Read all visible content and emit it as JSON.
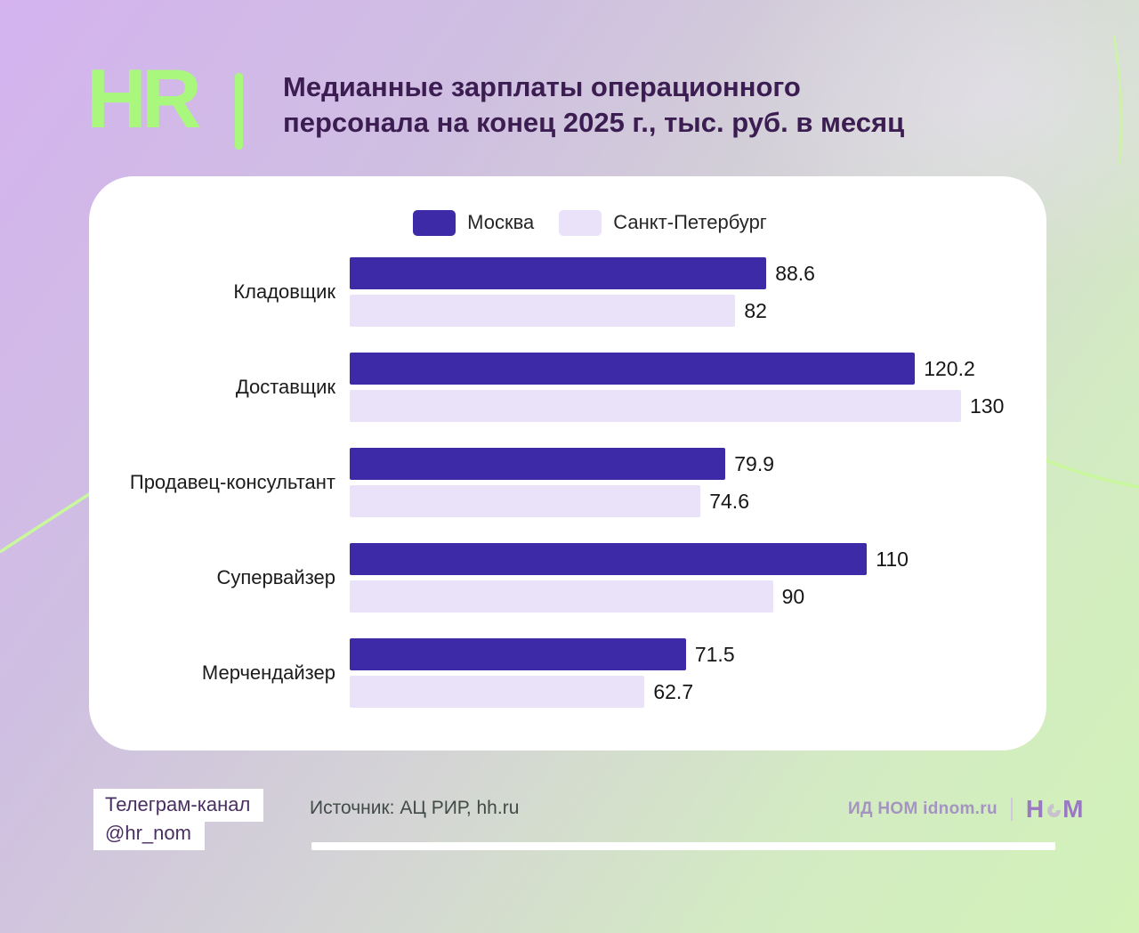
{
  "header": {
    "logo_text": "HR",
    "title_line1": "Медианные зарплаты операционного",
    "title_line2": "персонала на конец 2025 г., тыс. руб. в месяц"
  },
  "chart_data": {
    "type": "bar",
    "orientation": "horizontal",
    "title": "Медианные зарплаты операционного персонала на конец 2025 г., тыс. руб. в месяц",
    "categories": [
      "Кладовщик",
      "Доставщик",
      "Продавец-консультант",
      "Супервайзер",
      "Мерчендайзер"
    ],
    "series": [
      {
        "name": "Москва",
        "color": "#3d2aa7",
        "values": [
          88.6,
          120.2,
          79.9,
          110,
          71.5
        ]
      },
      {
        "name": "Санкт-Петербург",
        "color": "#e9e2f9",
        "values": [
          82,
          130,
          74.6,
          90,
          62.7
        ]
      }
    ],
    "xlim": [
      0,
      130
    ],
    "legend_position": "top",
    "value_labels": true,
    "grid": false
  },
  "footer": {
    "telegram_line1": "Телеграм-канал",
    "telegram_line2": "@hr_nom",
    "source": "Источник: АЦ РИР, hh.ru",
    "publisher": "ИД НОМ idnom.ru",
    "logo_first": "Н",
    "logo_last": "М"
  },
  "colors": {
    "accent_green": "#a9f87d",
    "title_purple": "#3b1d52",
    "moscow_bar": "#3d2aa7",
    "spb_bar": "#e9e2f9",
    "card_bg": "#ffffff"
  }
}
